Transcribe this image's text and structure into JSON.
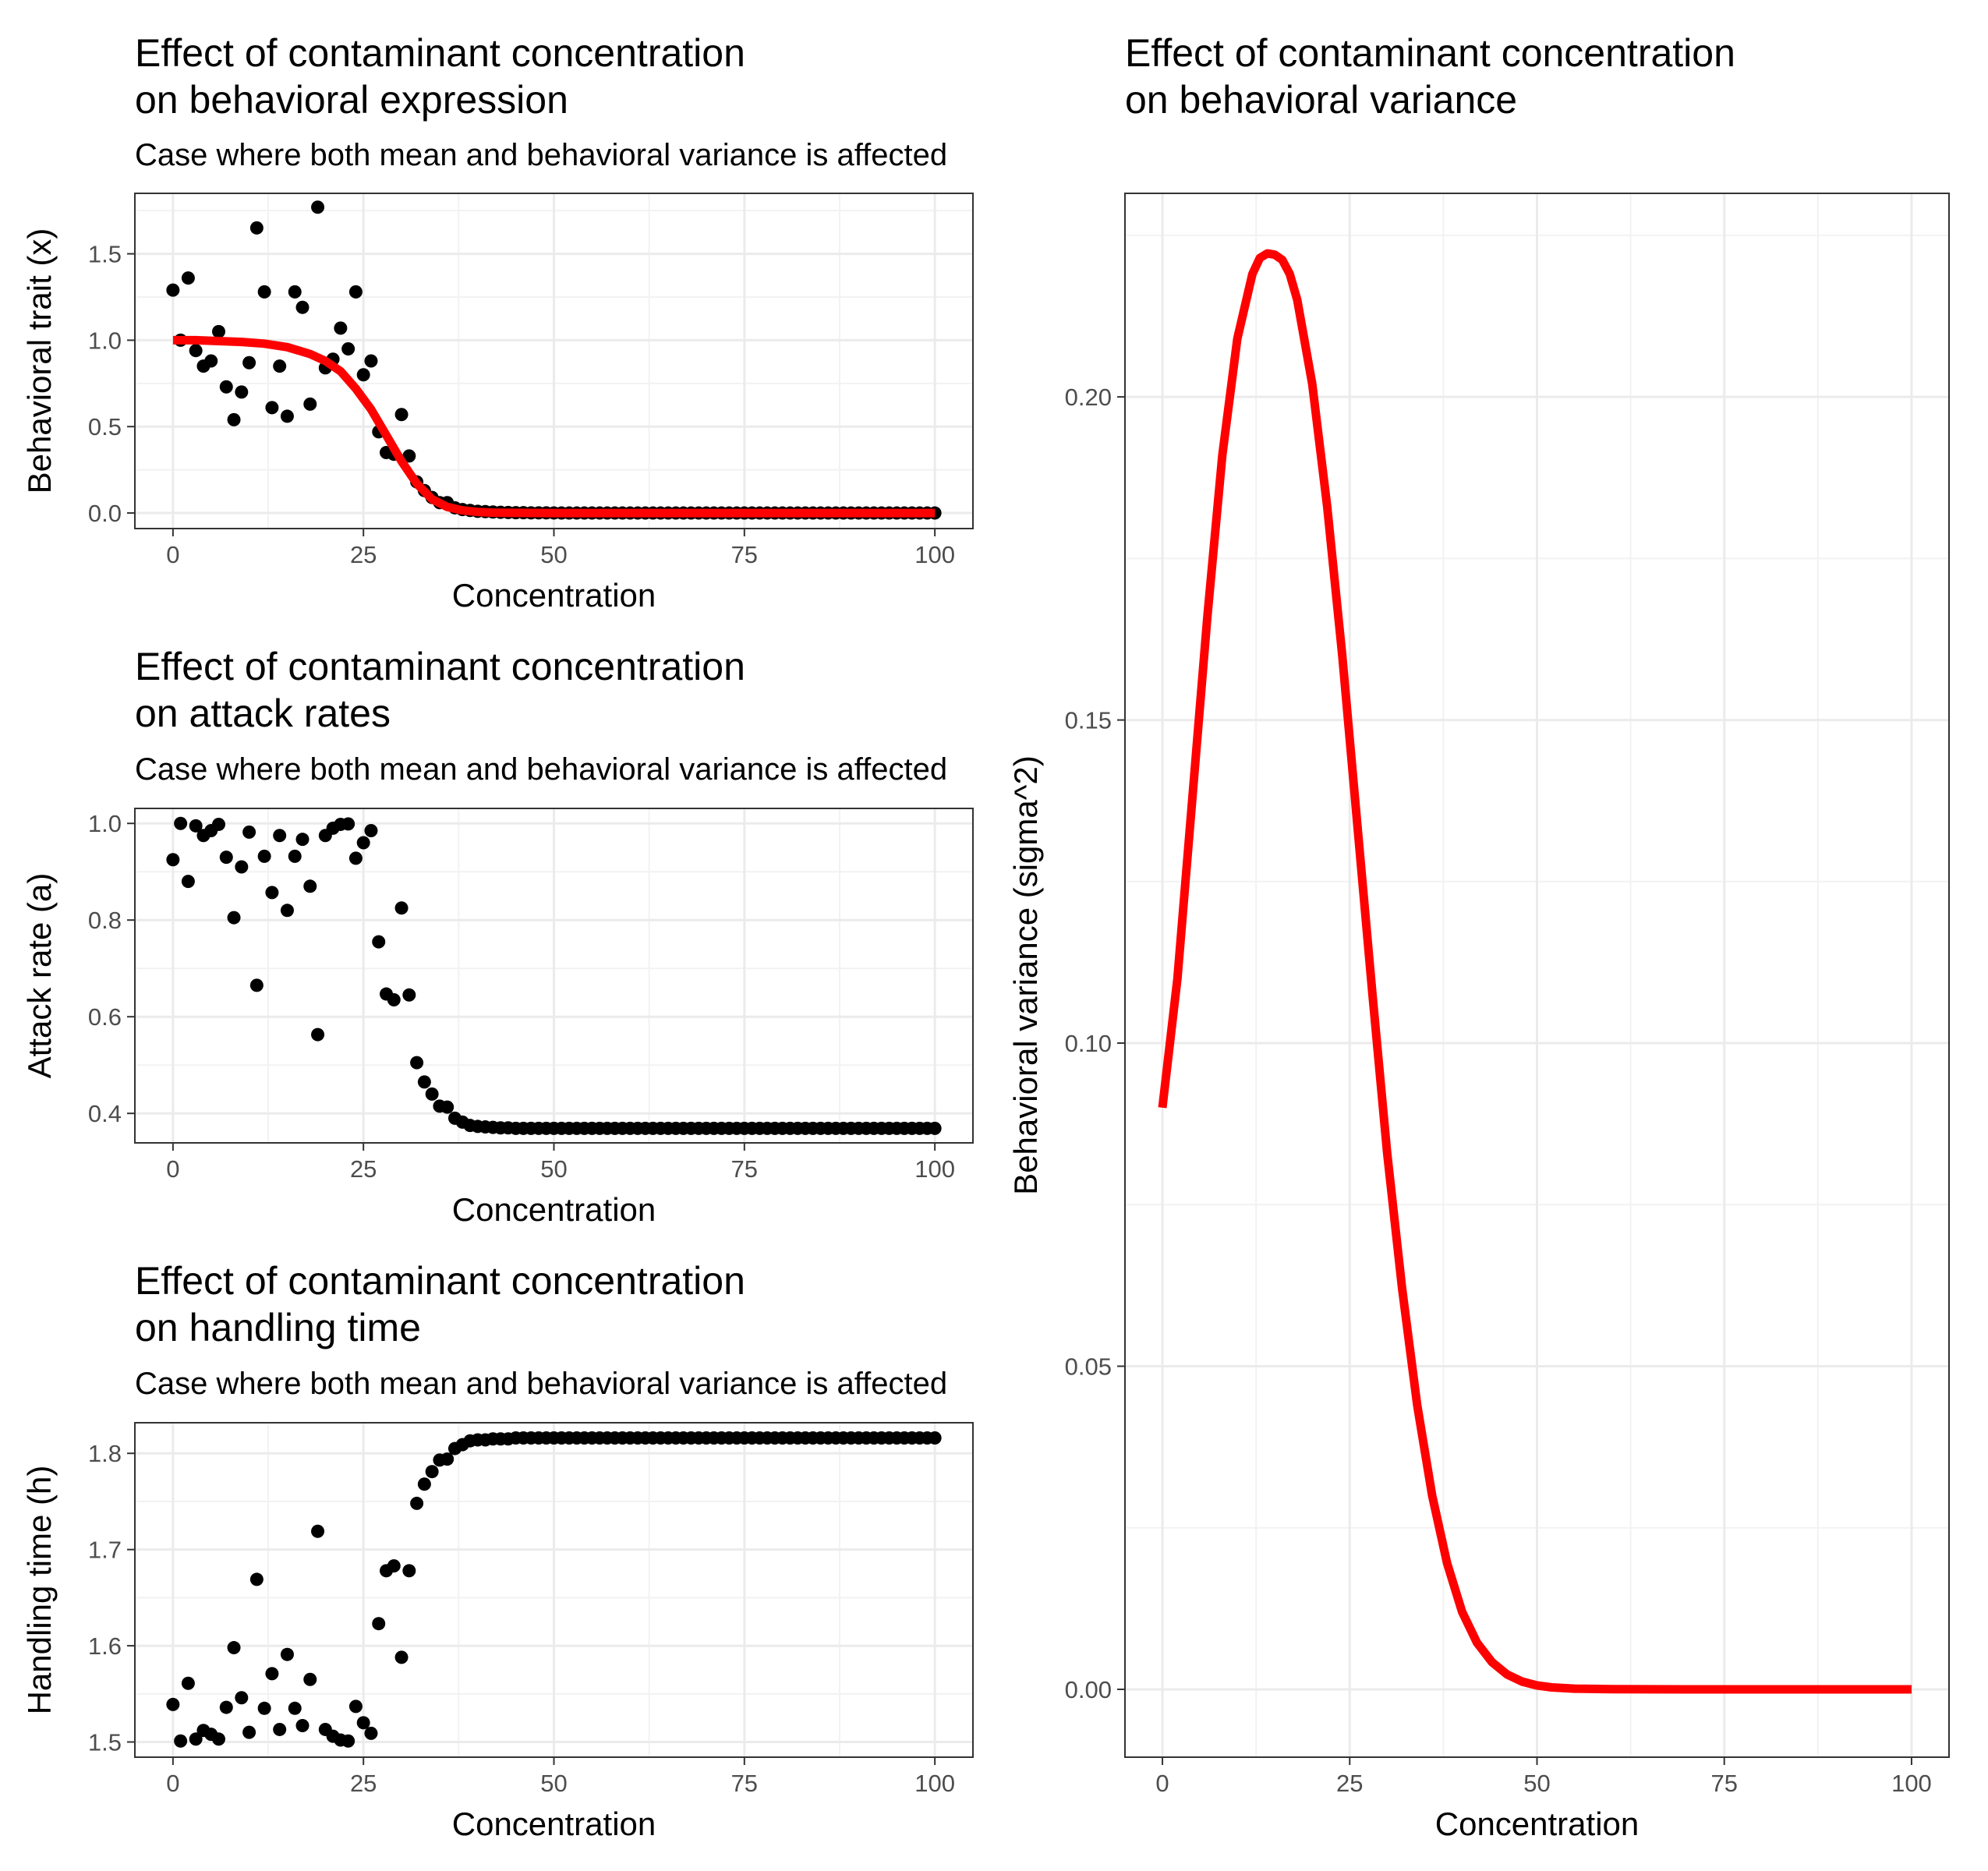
{
  "chart_data": [
    {
      "id": "expr",
      "type": "scatter",
      "title": [
        "Effect of contaminant concentration",
        " on behavioral expression"
      ],
      "subtitle": "Case where both mean and behavioral variance is affected",
      "xlabel": "Concentration",
      "ylabel": "Behavioral trait (x)",
      "xlim": [
        -5,
        105
      ],
      "ylim": [
        -0.09,
        1.85
      ],
      "xticks": [
        0,
        25,
        50,
        75,
        100
      ],
      "xtick_labels": [
        "0",
        "25",
        "50",
        "75",
        "100"
      ],
      "yticks": [
        0,
        0.5,
        1.0,
        1.5
      ],
      "ytick_labels": [
        "0.0",
        "0.5",
        "1.0",
        "1.5"
      ],
      "grid": true,
      "points": {
        "x": [
          0,
          1,
          2,
          3,
          4,
          5,
          6,
          7,
          8,
          9,
          10,
          11,
          12,
          13,
          14,
          15,
          16,
          17,
          18,
          19,
          20,
          21,
          22,
          23,
          24,
          25,
          26,
          27,
          28,
          29,
          30,
          31,
          32,
          33,
          34,
          35,
          36,
          37,
          38,
          39,
          40,
          41,
          42,
          43,
          44,
          45,
          46,
          47,
          48,
          49,
          50,
          51,
          52,
          53,
          54,
          55,
          56,
          57,
          58,
          59,
          60,
          61,
          62,
          63,
          64,
          65,
          66,
          67,
          68,
          69,
          70,
          71,
          72,
          73,
          74,
          75,
          76,
          77,
          78,
          79,
          80,
          81,
          82,
          83,
          84,
          85,
          86,
          87,
          88,
          89,
          90,
          91,
          92,
          93,
          94,
          95,
          96,
          97,
          98,
          99,
          100
        ],
        "y": [
          1.29,
          1.0,
          1.36,
          0.94,
          0.85,
          0.88,
          1.05,
          0.73,
          0.54,
          0.7,
          0.87,
          1.65,
          1.28,
          0.61,
          0.85,
          0.56,
          1.28,
          1.19,
          0.63,
          1.77,
          0.84,
          0.89,
          1.07,
          0.95,
          1.28,
          0.8,
          0.88,
          0.47,
          0.35,
          0.34,
          0.57,
          0.33,
          0.18,
          0.13,
          0.09,
          0.06,
          0.06,
          0.03,
          0.02,
          0.015,
          0.01,
          0.008,
          0.006,
          0.004,
          0.003,
          0.002,
          0.002,
          0.001,
          0.001,
          0.001,
          0.0005,
          0,
          0,
          0,
          0,
          0,
          0,
          0,
          0,
          0,
          0,
          0,
          0,
          0,
          0,
          0,
          0,
          0,
          0,
          0,
          0,
          0,
          0,
          0,
          0,
          0,
          0,
          0,
          0,
          0,
          0,
          0,
          0,
          0,
          0,
          0,
          0,
          0,
          0,
          0,
          0,
          0,
          0,
          0,
          0,
          0,
          0,
          0,
          0,
          0,
          0
        ]
      },
      "curve": {
        "color": "#ff0000",
        "x": [
          0,
          3,
          6,
          9,
          12,
          15,
          18,
          20,
          22,
          24,
          26,
          28,
          30,
          32,
          34,
          36,
          38,
          40,
          42,
          45,
          50,
          60,
          70,
          80,
          90,
          100
        ],
        "y": [
          1.0,
          1.0,
          0.995,
          0.99,
          0.98,
          0.96,
          0.92,
          0.88,
          0.82,
          0.72,
          0.6,
          0.45,
          0.3,
          0.17,
          0.08,
          0.035,
          0.015,
          0.006,
          0.002,
          0.0005,
          0,
          0,
          0,
          0,
          0,
          0
        ]
      }
    },
    {
      "id": "attack",
      "type": "scatter",
      "title": [
        "Effect of contaminant concentration",
        " on attack rates"
      ],
      "subtitle": "Case where both mean and behavioral variance is affected",
      "xlabel": "Concentration",
      "ylabel": "Attack rate (a)",
      "xlim": [
        -5,
        105
      ],
      "ylim": [
        0.339,
        1.031
      ],
      "xticks": [
        0,
        25,
        50,
        75,
        100
      ],
      "xtick_labels": [
        "0",
        "25",
        "50",
        "75",
        "100"
      ],
      "yticks": [
        0.4,
        0.6,
        0.8,
        1.0
      ],
      "ytick_labels": [
        "0.4",
        "0.6",
        "0.8",
        "1.0"
      ],
      "grid": true,
      "points": {
        "x": [
          0,
          1,
          2,
          3,
          4,
          5,
          6,
          7,
          8,
          9,
          10,
          11,
          12,
          13,
          14,
          15,
          16,
          17,
          18,
          19,
          20,
          21,
          22,
          23,
          24,
          25,
          26,
          27,
          28,
          29,
          30,
          31,
          32,
          33,
          34,
          35,
          36,
          37,
          38,
          39,
          40,
          41,
          42,
          43,
          44,
          45,
          46,
          47,
          48,
          49,
          50,
          51,
          52,
          53,
          54,
          55,
          56,
          57,
          58,
          59,
          60,
          61,
          62,
          63,
          64,
          65,
          66,
          67,
          68,
          69,
          70,
          71,
          72,
          73,
          74,
          75,
          76,
          77,
          78,
          79,
          80,
          81,
          82,
          83,
          84,
          85,
          86,
          87,
          88,
          89,
          90,
          91,
          92,
          93,
          94,
          95,
          96,
          97,
          98,
          99,
          100
        ],
        "y": [
          0.925,
          1.0,
          0.88,
          0.995,
          0.975,
          0.985,
          0.998,
          0.93,
          0.805,
          0.91,
          0.982,
          0.665,
          0.932,
          0.857,
          0.975,
          0.82,
          0.932,
          0.967,
          0.87,
          0.563,
          0.975,
          0.99,
          0.998,
          0.999,
          0.928,
          0.96,
          0.985,
          0.755,
          0.647,
          0.635,
          0.825,
          0.645,
          0.505,
          0.465,
          0.44,
          0.415,
          0.413,
          0.39,
          0.382,
          0.375,
          0.373,
          0.372,
          0.371,
          0.37,
          0.37,
          0.369,
          0.369,
          0.369,
          0.369,
          0.369,
          0.369,
          0.369,
          0.369,
          0.369,
          0.369,
          0.369,
          0.369,
          0.369,
          0.369,
          0.369,
          0.369,
          0.369,
          0.369,
          0.369,
          0.369,
          0.369,
          0.369,
          0.369,
          0.369,
          0.369,
          0.369,
          0.369,
          0.369,
          0.369,
          0.369,
          0.369,
          0.369,
          0.369,
          0.369,
          0.369,
          0.369,
          0.369,
          0.369,
          0.369,
          0.369,
          0.369,
          0.369,
          0.369,
          0.369,
          0.369,
          0.369,
          0.369,
          0.369,
          0.369,
          0.369,
          0.369,
          0.369,
          0.369,
          0.369,
          0.369,
          0.369
        ]
      }
    },
    {
      "id": "handling",
      "type": "scatter",
      "title": [
        "Effect of contaminant concentration",
        " on handling time"
      ],
      "subtitle": "Case where both mean and behavioral variance is affected",
      "xlabel": "Concentration",
      "ylabel": "Handling time (h)",
      "xlim": [
        -5,
        105
      ],
      "ylim": [
        1.4842,
        1.8318
      ],
      "xticks": [
        0,
        25,
        50,
        75,
        100
      ],
      "xtick_labels": [
        "0",
        "25",
        "50",
        "75",
        "100"
      ],
      "yticks": [
        1.5,
        1.6,
        1.7,
        1.8
      ],
      "ytick_labels": [
        "1.5",
        "1.6",
        "1.7",
        "1.8"
      ],
      "grid": true,
      "points": {
        "x": [
          0,
          1,
          2,
          3,
          4,
          5,
          6,
          7,
          8,
          9,
          10,
          11,
          12,
          13,
          14,
          15,
          16,
          17,
          18,
          19,
          20,
          21,
          22,
          23,
          24,
          25,
          26,
          27,
          28,
          29,
          30,
          31,
          32,
          33,
          34,
          35,
          36,
          37,
          38,
          39,
          40,
          41,
          42,
          43,
          44,
          45,
          46,
          47,
          48,
          49,
          50,
          51,
          52,
          53,
          54,
          55,
          56,
          57,
          58,
          59,
          60,
          61,
          62,
          63,
          64,
          65,
          66,
          67,
          68,
          69,
          70,
          71,
          72,
          73,
          74,
          75,
          76,
          77,
          78,
          79,
          80,
          81,
          82,
          83,
          84,
          85,
          86,
          87,
          88,
          89,
          90,
          91,
          92,
          93,
          94,
          95,
          96,
          97,
          98,
          99,
          100
        ],
        "y": [
          1.539,
          1.501,
          1.561,
          1.503,
          1.512,
          1.508,
          1.503,
          1.536,
          1.598,
          1.546,
          1.51,
          1.669,
          1.535,
          1.571,
          1.513,
          1.591,
          1.535,
          1.517,
          1.565,
          1.719,
          1.513,
          1.506,
          1.502,
          1.501,
          1.537,
          1.52,
          1.509,
          1.623,
          1.678,
          1.683,
          1.588,
          1.678,
          1.748,
          1.768,
          1.781,
          1.793,
          1.794,
          1.805,
          1.809,
          1.813,
          1.814,
          1.814,
          1.815,
          1.815,
          1.815,
          1.816,
          1.816,
          1.816,
          1.816,
          1.816,
          1.816,
          1.816,
          1.816,
          1.816,
          1.816,
          1.816,
          1.816,
          1.816,
          1.816,
          1.816,
          1.816,
          1.816,
          1.816,
          1.816,
          1.816,
          1.816,
          1.816,
          1.816,
          1.816,
          1.816,
          1.816,
          1.816,
          1.816,
          1.816,
          1.816,
          1.816,
          1.816,
          1.816,
          1.816,
          1.816,
          1.816,
          1.816,
          1.816,
          1.816,
          1.816,
          1.816,
          1.816,
          1.816,
          1.816,
          1.816,
          1.816,
          1.816,
          1.816,
          1.816,
          1.816,
          1.816,
          1.816,
          1.816,
          1.816,
          1.816,
          1.816
        ]
      }
    },
    {
      "id": "variance",
      "type": "line",
      "title": [
        "Effect of contaminant concentration",
        " on behavioral variance"
      ],
      "subtitle": "",
      "xlabel": "Concentration",
      "ylabel": "Behavioral variance (sigma^2)",
      "xlim": [
        -5,
        105
      ],
      "ylim": [
        -0.0105,
        0.2315
      ],
      "xticks": [
        0,
        25,
        50,
        75,
        100
      ],
      "xtick_labels": [
        "0",
        "25",
        "50",
        "75",
        "100"
      ],
      "yticks": [
        0,
        0.05,
        0.1,
        0.15,
        0.2
      ],
      "ytick_labels": [
        "0.00",
        "0.05",
        "0.10",
        "0.15",
        "0.20"
      ],
      "grid": true,
      "curve": {
        "color": "#ff0000",
        "x": [
          0,
          2,
          4,
          6,
          8,
          10,
          12,
          13,
          14,
          15,
          16,
          17,
          18,
          20,
          22,
          24,
          26,
          28,
          30,
          32,
          34,
          36,
          38,
          40,
          42,
          44,
          46,
          48,
          50,
          52,
          55,
          60,
          70,
          80,
          90,
          100
        ],
        "y": [
          0.09,
          0.11,
          0.138,
          0.166,
          0.191,
          0.209,
          0.219,
          0.2215,
          0.2222,
          0.222,
          0.2212,
          0.219,
          0.215,
          0.202,
          0.183,
          0.16,
          0.134,
          0.108,
          0.083,
          0.062,
          0.044,
          0.03,
          0.0195,
          0.012,
          0.0072,
          0.0042,
          0.0023,
          0.0012,
          0.0006,
          0.0003,
          0.0001,
          2e-05,
          0,
          0,
          0,
          0
        ]
      }
    }
  ]
}
